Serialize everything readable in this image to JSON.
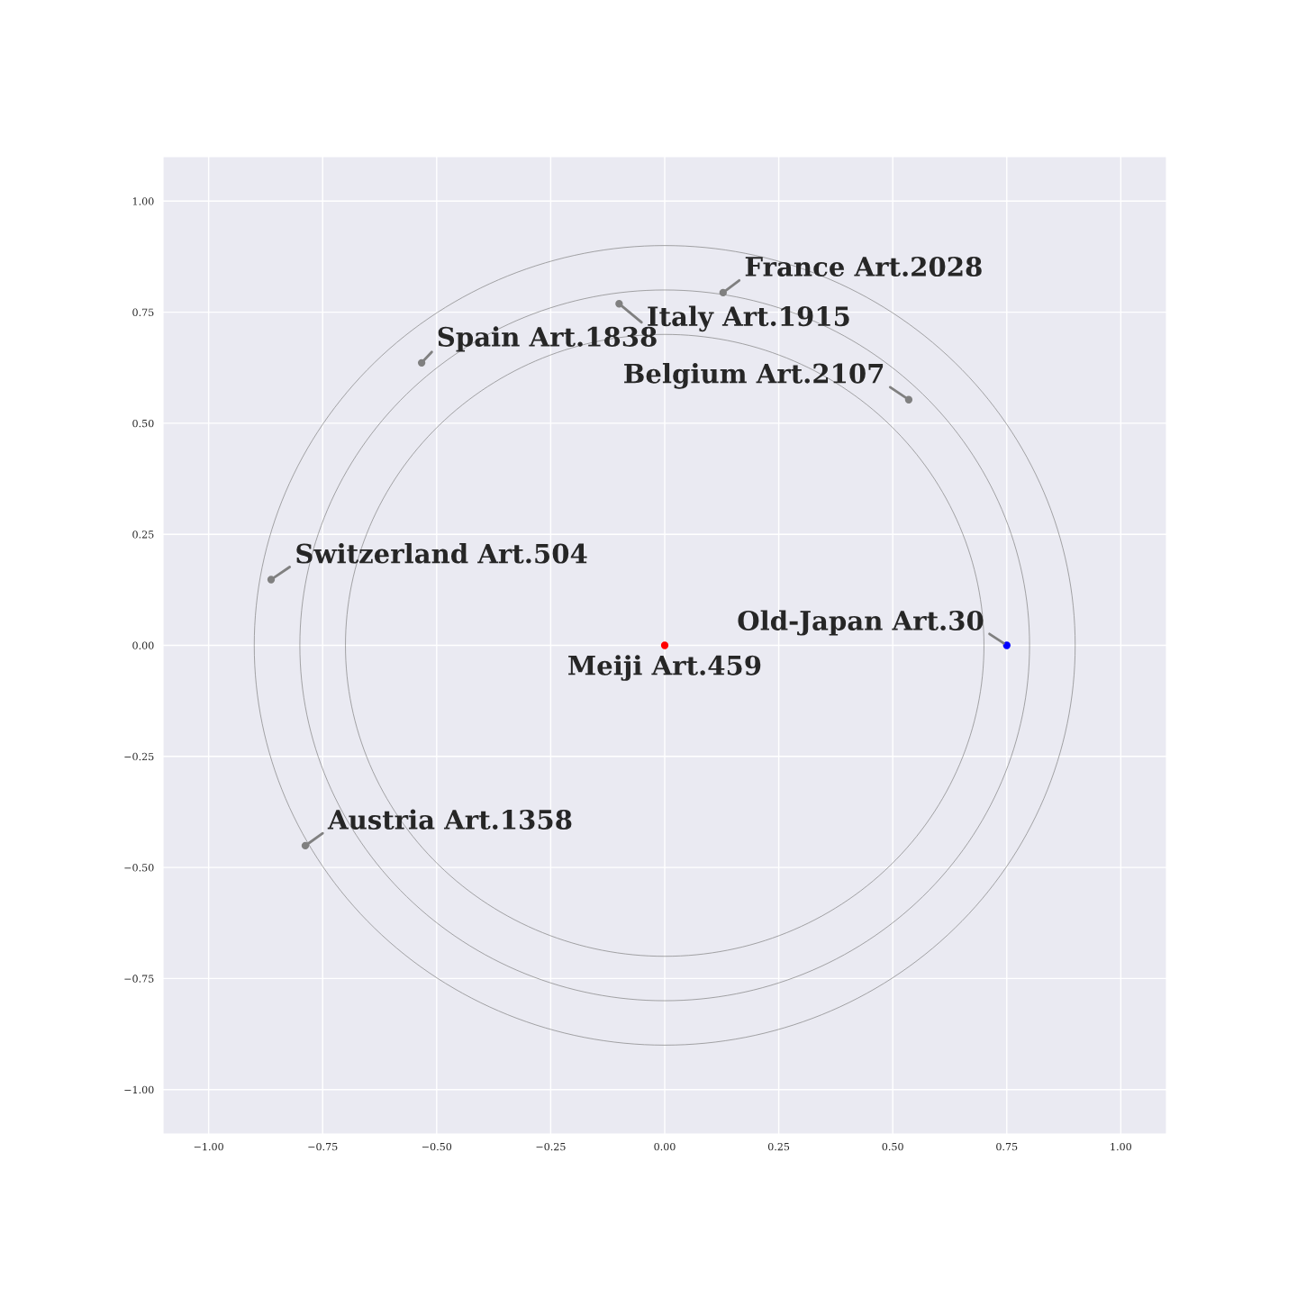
{
  "chart_data": {
    "type": "scatter",
    "xlim": [
      -1.1,
      1.1
    ],
    "ylim": [
      -1.1,
      1.1
    ],
    "xticks": [
      {
        "value": -1,
        "label": "−1.00"
      },
      {
        "value": -0.75,
        "label": "−0.75"
      },
      {
        "value": -0.5,
        "label": "−0.50"
      },
      {
        "value": -0.25,
        "label": "−0.25"
      },
      {
        "value": 0,
        "label": "0.00"
      },
      {
        "value": 0.25,
        "label": "0.25"
      },
      {
        "value": 0.5,
        "label": "0.50"
      },
      {
        "value": 0.75,
        "label": "0.75"
      },
      {
        "value": 1,
        "label": "1.00"
      }
    ],
    "yticks": [
      {
        "value": -1,
        "label": "−1.00"
      },
      {
        "value": -0.75,
        "label": "−0.75"
      },
      {
        "value": -0.5,
        "label": "−0.50"
      },
      {
        "value": -0.25,
        "label": "−0.25"
      },
      {
        "value": 0,
        "label": "0.00"
      },
      {
        "value": 0.25,
        "label": "0.25"
      },
      {
        "value": 0.5,
        "label": "0.50"
      },
      {
        "value": 0.75,
        "label": "0.75"
      },
      {
        "value": 1,
        "label": "1.00"
      }
    ],
    "grid": true,
    "series": [
      {
        "marker": "circle",
        "x": [
          0.128,
          -0.1,
          -0.533,
          0.535,
          -0.863,
          -0.788,
          0.75,
          0
        ],
        "values": [
          0.794,
          0.769,
          0.636,
          0.553,
          0.148,
          -0.451,
          0,
          0
        ],
        "colors": [
          "#808080",
          "#808080",
          "#808080",
          "#808080",
          "#808080",
          "#808080",
          "#0000ff",
          "#ff0000"
        ]
      }
    ],
    "annotations": [
      {
        "text": "France Art.2028",
        "x": 0.128,
        "y": 0.794
      },
      {
        "text": "Italy Art.1915",
        "x": -0.1,
        "y": 0.769
      },
      {
        "text": "Spain Art.1838",
        "x": -0.533,
        "y": 0.636
      },
      {
        "text": "Belgium Art.2107",
        "x": 0.535,
        "y": 0.553
      },
      {
        "text": "Switzerland Art.504",
        "x": -0.863,
        "y": 0.148
      },
      {
        "text": "Austria Art.1358",
        "x": -0.788,
        "y": -0.451
      },
      {
        "text": "Old-Japan Art.30",
        "x": 0.75,
        "y": 0
      },
      {
        "text": "Meiji Art.459",
        "x": 0,
        "y": 0
      }
    ]
  }
}
